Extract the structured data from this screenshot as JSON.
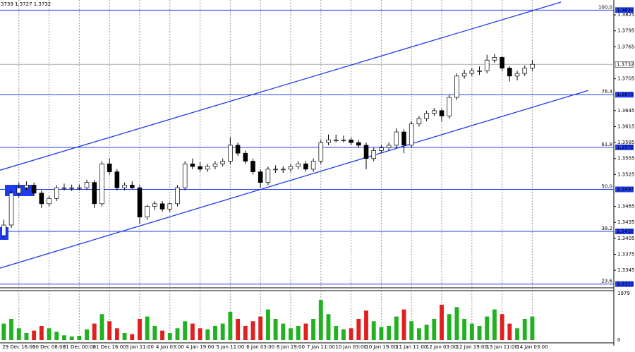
{
  "header": "3739 1.3727 1.3732",
  "chart_data": {
    "type": "candlestick",
    "xlim": [
      -0.5,
      80.8
    ],
    "ylim": [
      1.3312,
      1.3853
    ],
    "yticks": [
      1.3825,
      1.3795,
      1.3765,
      1.3705,
      1.3645,
      1.3615,
      1.3585,
      1.3555,
      1.3525,
      1.3465,
      1.3435,
      1.3405,
      1.3375,
      1.3345
    ],
    "xticks": [
      {
        "value": 2,
        "label": "29 Dec 16:00"
      },
      {
        "value": 6,
        "label": "30 Dec 08:00"
      },
      {
        "value": 10,
        "label": "31 Dec 00:00"
      },
      {
        "value": 14,
        "label": "31 Dec 16:00"
      },
      {
        "value": 18,
        "label": "3 Jan 11:00"
      },
      {
        "value": 22,
        "label": "4 Jan 03:00"
      },
      {
        "value": 26,
        "label": "4 Jan 19:00"
      },
      {
        "value": 30,
        "label": "5 Jan 11:00"
      },
      {
        "value": 34,
        "label": "6 Jan 03:00"
      },
      {
        "value": 38,
        "label": "6 Jan 19:00"
      },
      {
        "value": 42,
        "label": "7 Jan 11:00"
      },
      {
        "value": 46,
        "label": "10 Jan 03:00"
      },
      {
        "value": 50,
        "label": "10 Jan 19:00"
      },
      {
        "value": 54,
        "label": "11 Jan 11:00"
      },
      {
        "value": 58,
        "label": "12 Jan 03:00"
      },
      {
        "value": 62,
        "label": "12 Jan 19:00"
      },
      {
        "value": 66,
        "label": "13 Jan 11:00"
      },
      {
        "value": 70,
        "label": "14 Jan 03:00"
      }
    ],
    "open": [
      1.341,
      1.343,
      1.349,
      1.35,
      1.3505,
      1.349,
      1.347,
      1.348,
      1.35,
      1.35,
      1.35,
      1.35,
      1.351,
      1.347,
      1.3545,
      1.353,
      1.35,
      1.3505,
      1.35,
      1.3445,
      1.3465,
      1.347,
      1.346,
      1.347,
      1.35,
      1.3545,
      1.354,
      1.3535,
      1.354,
      1.3545,
      1.355,
      1.358,
      1.3565,
      1.355,
      1.353,
      1.351,
      1.3535,
      1.3535,
      1.3535,
      1.354,
      1.3545,
      1.3535,
      1.355,
      1.3585,
      1.359,
      1.359,
      1.359,
      1.3585,
      1.358,
      1.3555,
      1.357,
      1.3575,
      1.358,
      1.3605,
      1.358,
      1.362,
      1.363,
      1.364,
      1.3645,
      1.3635,
      1.367,
      1.371,
      1.3715,
      1.372,
      1.372,
      1.374,
      1.3745,
      1.3725,
      1.371,
      1.3715,
      1.3725
    ],
    "high": [
      1.344,
      1.3495,
      1.351,
      1.3512,
      1.351,
      1.3495,
      1.3485,
      1.3505,
      1.3508,
      1.3506,
      1.3506,
      1.3515,
      1.3515,
      1.355,
      1.3555,
      1.3535,
      1.351,
      1.3512,
      1.3505,
      1.3468,
      1.3475,
      1.3475,
      1.3472,
      1.3505,
      1.355,
      1.3555,
      1.3548,
      1.3545,
      1.355,
      1.3555,
      1.3595,
      1.3585,
      1.357,
      1.3555,
      1.3535,
      1.354,
      1.3542,
      1.354,
      1.3545,
      1.355,
      1.355,
      1.3555,
      1.359,
      1.36,
      1.36,
      1.3598,
      1.3595,
      1.359,
      1.3585,
      1.3575,
      1.358,
      1.3585,
      1.3612,
      1.361,
      1.3625,
      1.3635,
      1.3645,
      1.365,
      1.3648,
      1.3675,
      1.3715,
      1.3722,
      1.3725,
      1.3728,
      1.375,
      1.3752,
      1.3748,
      1.3728,
      1.372,
      1.373,
      1.374
    ],
    "low": [
      1.3405,
      1.3425,
      1.3482,
      1.3495,
      1.3485,
      1.3462,
      1.3465,
      1.3475,
      1.3495,
      1.3494,
      1.3495,
      1.3496,
      1.3462,
      1.3465,
      1.3525,
      1.3495,
      1.3495,
      1.3498,
      1.3432,
      1.344,
      1.3458,
      1.3455,
      1.3455,
      1.3465,
      1.3495,
      1.3535,
      1.353,
      1.353,
      1.3535,
      1.354,
      1.3545,
      1.356,
      1.3545,
      1.3525,
      1.35,
      1.3505,
      1.3528,
      1.3528,
      1.353,
      1.3535,
      1.353,
      1.353,
      1.3545,
      1.358,
      1.3585,
      1.3585,
      1.358,
      1.3575,
      1.3535,
      1.355,
      1.3565,
      1.357,
      1.3575,
      1.3565,
      1.3575,
      1.3615,
      1.3625,
      1.3635,
      1.3625,
      1.363,
      1.3665,
      1.3705,
      1.371,
      1.3712,
      1.3715,
      1.3735,
      1.372,
      1.37,
      1.3702,
      1.371,
      1.372
    ],
    "close": [
      1.343,
      1.349,
      1.35,
      1.3505,
      1.349,
      1.347,
      1.348,
      1.35,
      1.35,
      1.35,
      1.35,
      1.351,
      1.347,
      1.3545,
      1.353,
      1.35,
      1.3505,
      1.35,
      1.3445,
      1.3465,
      1.347,
      1.346,
      1.347,
      1.35,
      1.3545,
      1.354,
      1.3535,
      1.354,
      1.3545,
      1.355,
      1.358,
      1.3565,
      1.355,
      1.353,
      1.351,
      1.3535,
      1.3535,
      1.3535,
      1.354,
      1.3545,
      1.3535,
      1.355,
      1.3585,
      1.359,
      1.359,
      1.359,
      1.3585,
      1.358,
      1.3555,
      1.357,
      1.3575,
      1.358,
      1.3605,
      1.358,
      1.362,
      1.363,
      1.364,
      1.3645,
      1.3635,
      1.367,
      1.371,
      1.3715,
      1.372,
      1.372,
      1.374,
      1.3745,
      1.3725,
      1.371,
      1.3715,
      1.3725,
      1.3732
    ],
    "volume": [
      700,
      900,
      500,
      300,
      400,
      600,
      500,
      350,
      200,
      150,
      180,
      450,
      700,
      1100,
      800,
      500,
      300,
      250,
      900,
      1000,
      600,
      400,
      300,
      500,
      800,
      700,
      500,
      450,
      600,
      700,
      1200,
      900,
      600,
      800,
      1000,
      1300,
      900,
      700,
      500,
      600,
      700,
      900,
      1700,
      1100,
      600,
      450,
      500,
      900,
      1250,
      800,
      550,
      600,
      1000,
      1300,
      800,
      500,
      650,
      900,
      1500,
      1100,
      1400,
      900,
      700,
      600,
      1000,
      1300,
      1100,
      700,
      500,
      900,
      1000
    ],
    "volume_ylim": [
      0,
      1979
    ],
    "volume_ticks": [
      0,
      1979
    ],
    "fib_levels": [
      {
        "level": {
          "value": 100,
          "label": "100.0"
        },
        "price": 1.3834
      },
      {
        "level": 76.4,
        "price": 1.3675
      },
      {
        "level": 61.8,
        "price": 1.3576
      },
      {
        "level": {
          "value": 50,
          "label": "50.0"
        },
        "price": 1.3497
      },
      {
        "level": 38.2,
        "price": 1.3418
      },
      {
        "level": 23.6,
        "price": 1.3319
      }
    ],
    "current_price": 1.3732,
    "channels": [
      {
        "x": [
          -0.5,
          73.8
        ],
        "y": [
          1.3533,
          1.3849
        ]
      },
      {
        "x": [
          -0.5,
          77.4
        ],
        "y": [
          1.3349,
          1.3683
        ]
      }
    ]
  }
}
